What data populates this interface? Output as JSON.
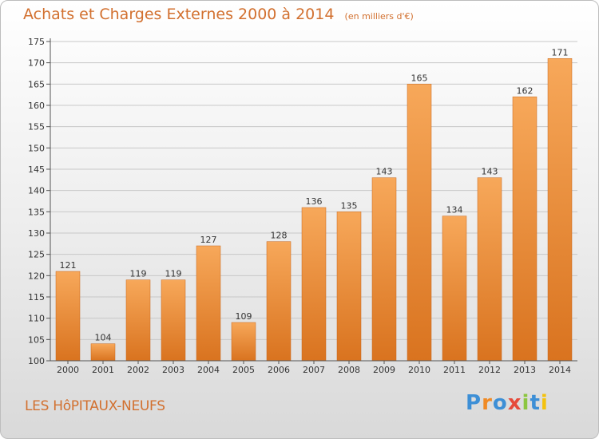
{
  "title": "Achats et Charges Externes 2000 à 2014",
  "subtitle": "(en milliers d'€)",
  "commune": "LES HôPITAUX-NEUFS",
  "logo": {
    "letters": [
      "P",
      "r",
      "o",
      "x",
      "i",
      "t",
      "i"
    ],
    "colors": [
      "#3d8fd6",
      "#f08a24",
      "#3d8fd6",
      "#e64a3a",
      "#8cc63f",
      "#3d8fd6",
      "#f4c20d"
    ]
  },
  "colors": {
    "title": "#d2702f",
    "bar_top": "#f7a85a",
    "bar_bottom": "#d9731f",
    "grid": "#c8c8c8"
  },
  "chart_data": {
    "type": "bar",
    "categories": [
      "2000",
      "2001",
      "2002",
      "2003",
      "2004",
      "2005",
      "2006",
      "2007",
      "2008",
      "2009",
      "2010",
      "2011",
      "2012",
      "2013",
      "2014"
    ],
    "values": [
      121,
      104,
      119,
      119,
      127,
      109,
      128,
      136,
      135,
      143,
      165,
      134,
      143,
      162,
      171
    ],
    "data_labels": [
      "121",
      "104",
      "119",
      "119",
      "127",
      "109",
      "128",
      "136",
      "135",
      "143",
      "165",
      "134",
      "143",
      "162",
      "171"
    ],
    "yticks": [
      "100",
      "105",
      "110",
      "115",
      "120",
      "125",
      "130",
      "135",
      "140",
      "145",
      "150",
      "155",
      "160",
      "165",
      "170",
      "175"
    ],
    "ylim": [
      100,
      175
    ],
    "grid": true
  }
}
